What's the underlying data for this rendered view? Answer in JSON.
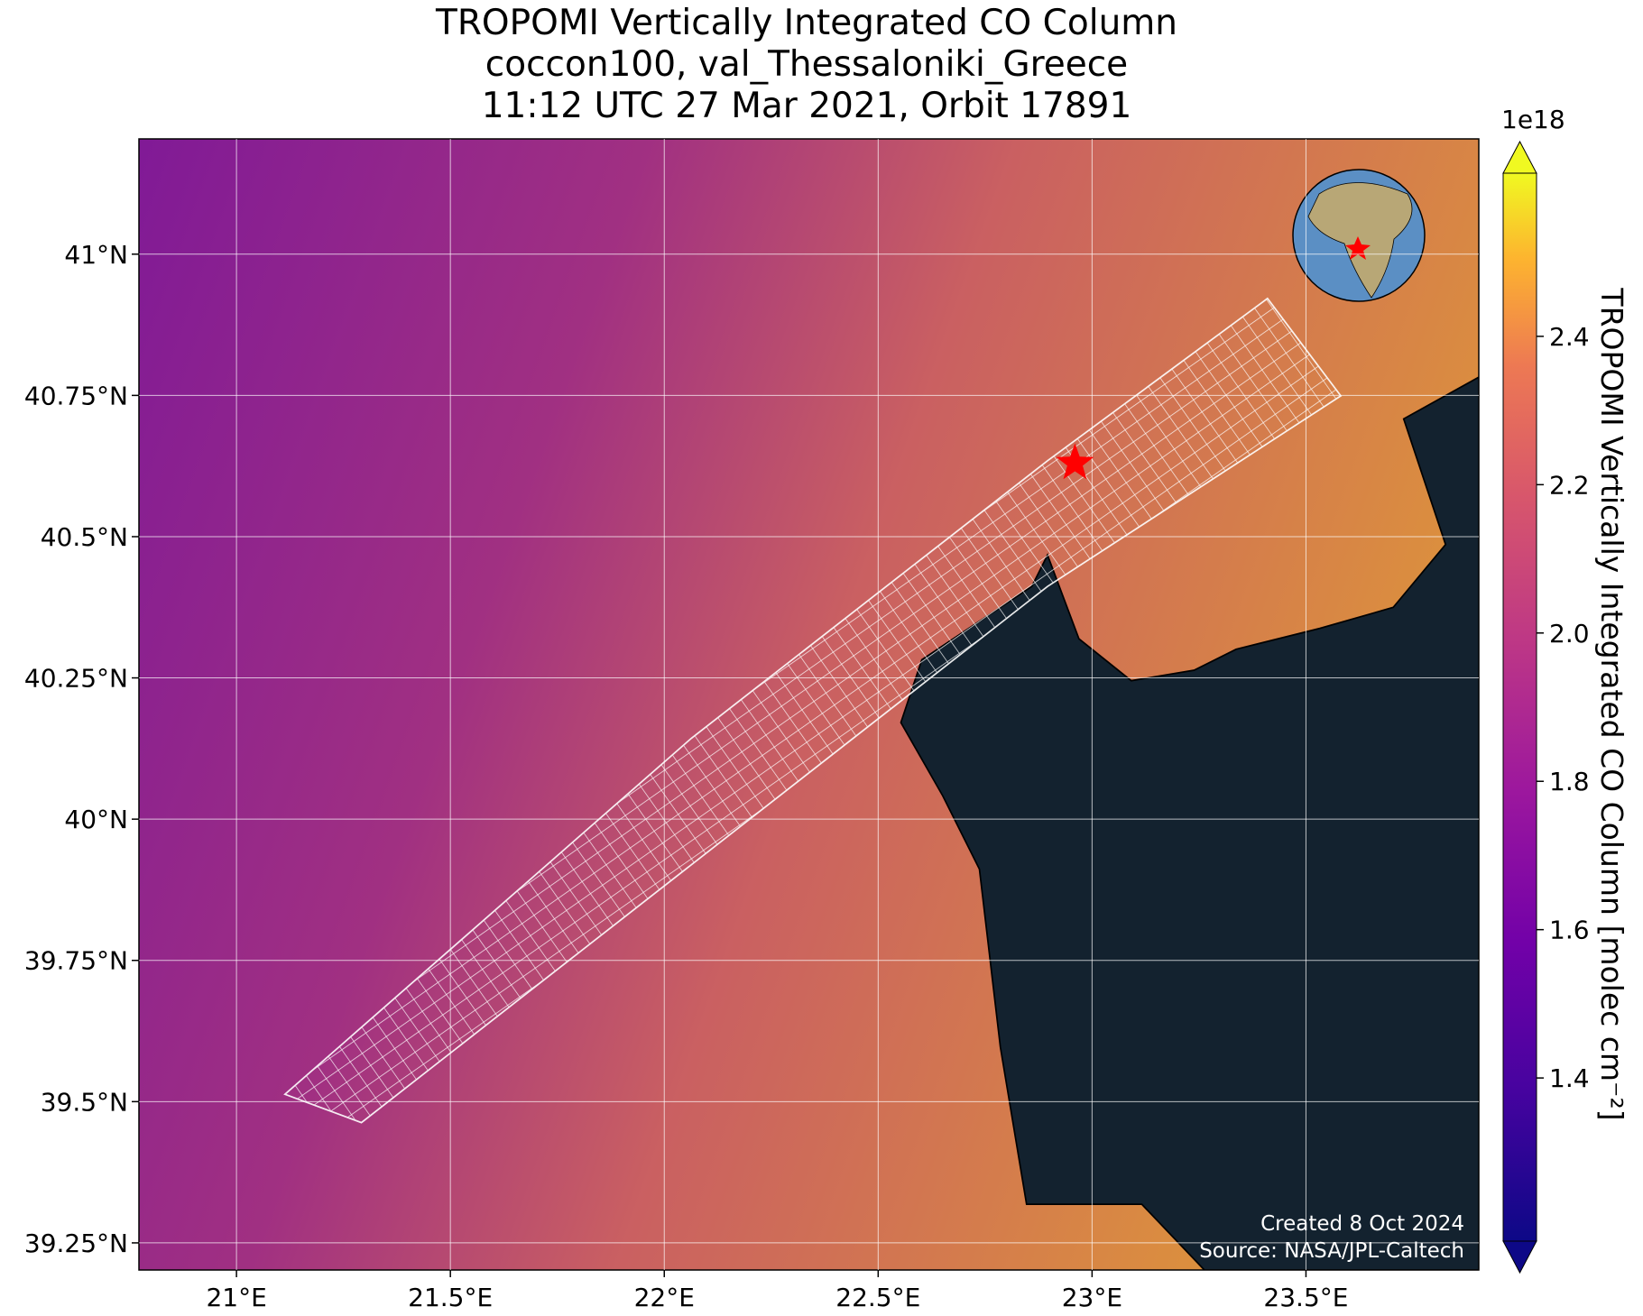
{
  "chart_data": {
    "type": "map",
    "title": [
      "TROPOMI Vertically Integrated CO Column",
      "coccon100, val_Thessaloniki_Greece",
      "11:12 UTC 27 Mar 2021, Orbit 17891"
    ],
    "xlim": [
      20.772,
      23.904
    ],
    "ylim": [
      39.202,
      41.204
    ],
    "xticks": [
      {
        "value": 21,
        "label": "21°E"
      },
      {
        "value": 21.5,
        "label": "21.5°E"
      },
      {
        "value": 22,
        "label": "22°E"
      },
      {
        "value": 22.5,
        "label": "22.5°E"
      },
      {
        "value": 23,
        "label": "23°E"
      },
      {
        "value": 23.5,
        "label": "23.5°E"
      }
    ],
    "yticks": [
      {
        "value": 39.25,
        "label": "39.25°N"
      },
      {
        "value": 39.5,
        "label": "39.5°N"
      },
      {
        "value": 39.75,
        "label": "39.75°N"
      },
      {
        "value": 40,
        "label": "40°N"
      },
      {
        "value": 40.25,
        "label": "40.25°N"
      },
      {
        "value": 40.5,
        "label": "40.5°N"
      },
      {
        "value": 40.75,
        "label": "40.75°N"
      },
      {
        "value": 41,
        "label": "41°N"
      }
    ],
    "grid": true,
    "site": {
      "lon": 22.96,
      "lat": 40.63,
      "color": "#ff0000"
    },
    "colorbar": {
      "label": "TROPOMI Vertically Integrated CO Column [molec cm⁻²]",
      "offset": "1e18",
      "clim": [
        1.18,
        2.62
      ],
      "ticks": [
        1.4,
        1.6,
        1.8,
        {
          "value": 2,
          "label": "2.0"
        },
        2.2,
        2.4
      ]
    },
    "credits": [
      "Created 8 Oct 2024",
      "Source: NASA/JPL-Caltech"
    ]
  }
}
